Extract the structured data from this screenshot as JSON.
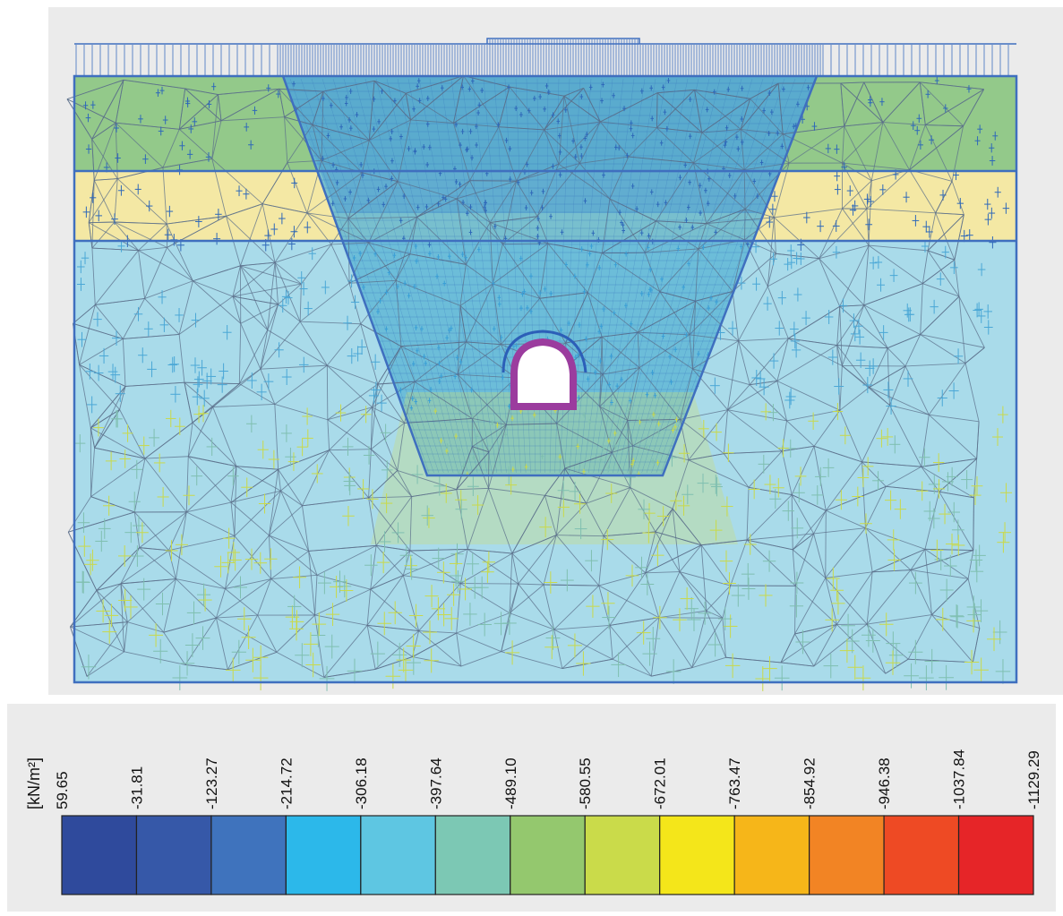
{
  "legend": {
    "unit": "[kN/m²]",
    "ticks": [
      "59.65",
      "-31.81",
      "-123.27",
      "-214.72",
      "-306.18",
      "-397.64",
      "-489.10",
      "-580.55",
      "-672.01",
      "-763.47",
      "-854.92",
      "-946.38",
      "-1037.84",
      "-1129.29"
    ],
    "colors": [
      "#2f4a9c",
      "#3658a8",
      "#3f73bd",
      "#2cb8ea",
      "#5ec6e2",
      "#7cc8b4",
      "#94c86e",
      "#cadb4a",
      "#f4e61a",
      "#f6b619",
      "#f28424",
      "#ee4a24",
      "#e62528"
    ]
  },
  "layers": {
    "top_color": "#93c98a",
    "middle_color": "#f4e8a4",
    "bottom_color": "#a9dbea"
  },
  "lining_color": "#9b3c9e",
  "boundary_color": "#3f6fbf"
}
